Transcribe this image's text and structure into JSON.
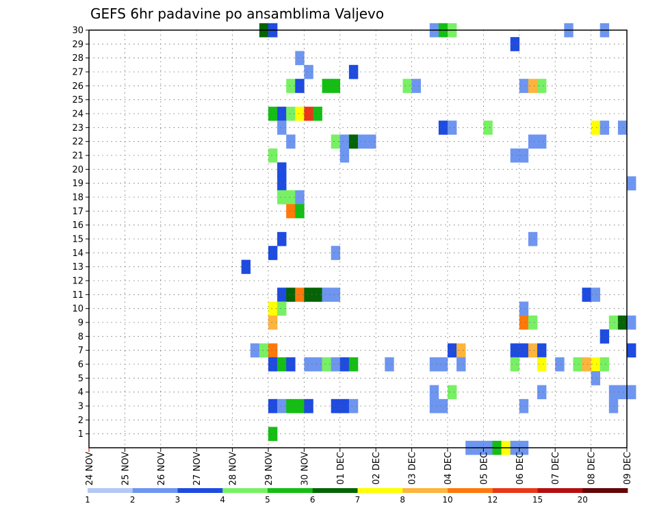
{
  "chart_data": {
    "type": "heatmap",
    "title": "GEFS 6hr padavine po ansamblima Valjevo",
    "xlabel": "",
    "ylabel": "",
    "x_tick_labels": [
      "24 NOV",
      "25 NOV",
      "26 NOV",
      "27 NOV",
      "28 NOV",
      "29 NOV",
      "30 NOV",
      "01 DEC",
      "02 DEC",
      "03 DEC",
      "04 DEC",
      "05 DEC",
      "06 DEC",
      "07 DEC",
      "08 DEC",
      "09 DEC"
    ],
    "y_tick_labels": [
      "1",
      "2",
      "3",
      "4",
      "5",
      "6",
      "7",
      "8",
      "9",
      "10",
      "11",
      "12",
      "13",
      "14",
      "15",
      "16",
      "17",
      "18",
      "19",
      "20",
      "21",
      "22",
      "23",
      "24",
      "25",
      "26",
      "27",
      "28",
      "29",
      "30"
    ],
    "x_unit": "6-hourly step",
    "grid": true,
    "colorbar": {
      "labels": [
        "1",
        "2",
        "3",
        "4",
        "5",
        "6",
        "7",
        "8",
        "10",
        "12",
        "15",
        "20"
      ],
      "colors": [
        "#b4c8f5",
        "#6e96f0",
        "#1e4be0",
        "#78f064",
        "#14be14",
        "#056405",
        "#ffff00",
        "#ffb43c",
        "#ff780a",
        "#eb3719",
        "#b40f0f",
        "#640505"
      ]
    },
    "cells": [
      [
        19,
        30,
        5
      ],
      [
        20,
        30,
        2
      ],
      [
        38,
        30,
        1
      ],
      [
        39,
        30,
        4
      ],
      [
        40,
        30,
        3
      ],
      [
        53,
        30,
        1
      ],
      [
        57,
        30,
        1
      ],
      [
        47,
        29,
        2
      ],
      [
        23,
        28,
        1
      ],
      [
        24,
        27,
        1
      ],
      [
        29,
        27,
        2
      ],
      [
        22,
        26,
        3
      ],
      [
        23,
        26,
        2
      ],
      [
        26,
        26,
        4
      ],
      [
        27,
        26,
        4
      ],
      [
        35,
        26,
        3
      ],
      [
        36,
        26,
        1
      ],
      [
        48,
        26,
        1
      ],
      [
        49,
        26,
        7
      ],
      [
        50,
        26,
        3
      ],
      [
        20,
        24,
        4
      ],
      [
        21,
        24,
        2
      ],
      [
        22,
        24,
        3
      ],
      [
        23,
        24,
        6
      ],
      [
        24,
        24,
        9
      ],
      [
        25,
        24,
        4
      ],
      [
        21,
        23,
        1
      ],
      [
        39,
        23,
        2
      ],
      [
        40,
        23,
        1
      ],
      [
        44,
        23,
        3
      ],
      [
        56,
        23,
        6
      ],
      [
        57,
        23,
        1
      ],
      [
        59,
        23,
        1
      ],
      [
        22,
        22,
        1
      ],
      [
        27,
        22,
        3
      ],
      [
        28,
        22,
        1
      ],
      [
        29,
        22,
        5
      ],
      [
        30,
        22,
        1
      ],
      [
        31,
        22,
        1
      ],
      [
        49,
        22,
        1
      ],
      [
        50,
        22,
        1
      ],
      [
        20,
        21,
        3
      ],
      [
        28,
        21,
        1
      ],
      [
        47,
        21,
        1
      ],
      [
        48,
        21,
        1
      ],
      [
        21,
        20,
        2
      ],
      [
        21,
        19,
        2
      ],
      [
        60,
        19,
        1
      ],
      [
        21,
        18,
        3
      ],
      [
        22,
        18,
        3
      ],
      [
        23,
        18,
        1
      ],
      [
        22,
        17,
        8
      ],
      [
        23,
        17,
        4
      ],
      [
        49,
        15,
        1
      ],
      [
        21,
        15,
        2
      ],
      [
        20,
        14,
        2
      ],
      [
        27,
        14,
        1
      ],
      [
        17,
        13,
        2
      ],
      [
        21,
        11,
        2
      ],
      [
        22,
        11,
        5
      ],
      [
        23,
        11,
        8
      ],
      [
        24,
        11,
        5
      ],
      [
        25,
        11,
        5
      ],
      [
        26,
        11,
        1
      ],
      [
        27,
        11,
        1
      ],
      [
        55,
        11,
        2
      ],
      [
        56,
        11,
        1
      ],
      [
        20,
        10,
        6
      ],
      [
        21,
        10,
        3
      ],
      [
        48,
        10,
        1
      ],
      [
        20,
        9,
        7
      ],
      [
        48,
        9,
        8
      ],
      [
        49,
        9,
        3
      ],
      [
        58,
        9,
        3
      ],
      [
        59,
        9,
        5
      ],
      [
        60,
        9,
        1
      ],
      [
        57,
        8,
        2
      ],
      [
        18,
        7,
        1
      ],
      [
        19,
        7,
        3
      ],
      [
        20,
        7,
        8
      ],
      [
        40,
        7,
        2
      ],
      [
        41,
        7,
        7
      ],
      [
        47,
        7,
        2
      ],
      [
        48,
        7,
        2
      ],
      [
        49,
        7,
        7
      ],
      [
        50,
        7,
        2
      ],
      [
        60,
        7,
        2
      ],
      [
        20,
        6,
        2
      ],
      [
        21,
        6,
        4
      ],
      [
        22,
        6,
        2
      ],
      [
        24,
        6,
        1
      ],
      [
        25,
        6,
        1
      ],
      [
        26,
        6,
        3
      ],
      [
        27,
        6,
        1
      ],
      [
        28,
        6,
        2
      ],
      [
        29,
        6,
        4
      ],
      [
        33,
        6,
        1
      ],
      [
        38,
        6,
        1
      ],
      [
        39,
        6,
        1
      ],
      [
        41,
        6,
        1
      ],
      [
        47,
        6,
        3
      ],
      [
        50,
        6,
        6
      ],
      [
        52,
        6,
        1
      ],
      [
        54,
        6,
        3
      ],
      [
        55,
        6,
        7
      ],
      [
        56,
        6,
        6
      ],
      [
        57,
        6,
        3
      ],
      [
        56,
        5,
        1
      ],
      [
        38,
        4,
        1
      ],
      [
        40,
        4,
        3
      ],
      [
        50,
        4,
        1
      ],
      [
        58,
        4,
        1
      ],
      [
        59,
        4,
        1
      ],
      [
        60,
        4,
        1
      ],
      [
        20,
        3,
        2
      ],
      [
        21,
        3,
        1
      ],
      [
        22,
        3,
        4
      ],
      [
        23,
        3,
        4
      ],
      [
        24,
        3,
        2
      ],
      [
        27,
        3,
        2
      ],
      [
        28,
        3,
        2
      ],
      [
        29,
        3,
        1
      ],
      [
        38,
        3,
        1
      ],
      [
        39,
        3,
        1
      ],
      [
        48,
        3,
        1
      ],
      [
        58,
        3,
        1
      ],
      [
        20,
        1,
        4
      ],
      [
        42,
        0,
        1
      ],
      [
        43,
        0,
        1
      ],
      [
        44,
        0,
        1
      ],
      [
        45,
        0,
        4
      ],
      [
        46,
        0,
        6
      ],
      [
        47,
        0,
        1
      ],
      [
        48,
        0,
        1
      ]
    ]
  }
}
